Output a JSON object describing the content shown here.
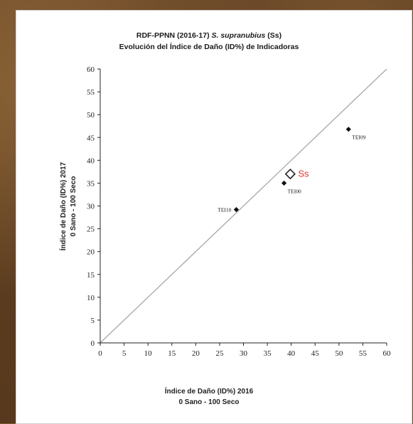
{
  "chart_data": {
    "type": "scatter",
    "title_part1": "RDF-PPNN (2016-17) ",
    "title_species": "S. supranubius",
    "title_part2": " (Ss)",
    "subtitle": "Evolución del Índice de Daño (ID%) de Indicadoras",
    "xlabel_line1": "Índice de Daño (ID%) 2016",
    "xlabel_line2": "0 Sano - 100 Seco",
    "ylabel_line1": "Índice de Daño (ID%) 2017",
    "ylabel_line2": "0 Sano - 100 Seco",
    "xlim": [
      0,
      60
    ],
    "ylim": [
      0,
      60
    ],
    "xticks": [
      0,
      5,
      10,
      15,
      20,
      25,
      30,
      35,
      40,
      45,
      50,
      55,
      60
    ],
    "yticks": [
      0,
      5,
      10,
      15,
      20,
      25,
      30,
      35,
      40,
      45,
      50,
      55,
      60
    ],
    "reference_line": {
      "from": [
        0,
        0
      ],
      "to": [
        60,
        60
      ]
    },
    "points": [
      {
        "label": "TEI10",
        "x": 28.5,
        "y": 29.2,
        "label_side": "left"
      },
      {
        "label": "TEI00",
        "x": 38.5,
        "y": 35.0,
        "label_side": "below-right"
      },
      {
        "label": "TEI09",
        "x": 52.0,
        "y": 46.8,
        "label_side": "below-right"
      }
    ],
    "highlight": {
      "label": "Ss",
      "x": 39.8,
      "y": 37.0,
      "color": "#e03030"
    },
    "colors": {
      "points": "#111111",
      "line": "#a8a8a8",
      "axis": "#222222"
    }
  }
}
